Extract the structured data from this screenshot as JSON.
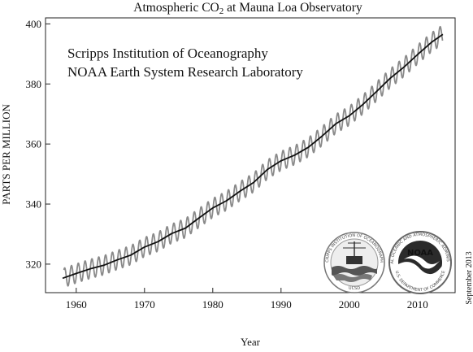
{
  "chart_data": {
    "type": "line",
    "title_main": "Atmospheric CO",
    "title_sub": "2",
    "title_rest": " at Mauna Loa Observatory",
    "xlabel": "Year",
    "ylabel": "PARTS PER MILLION",
    "xlim": [
      1955.5,
      2015.5
    ],
    "ylim": [
      310.5,
      402
    ],
    "x_ticks": [
      1960,
      1970,
      1980,
      1990,
      2000,
      2010
    ],
    "y_ticks": [
      320,
      340,
      360,
      380,
      400
    ],
    "annotations": [
      "Scripps Institution of Oceanography",
      "NOAA Earth System Research Laboratory"
    ],
    "date_note": "September 2013",
    "grid": false,
    "series": [
      {
        "role": "trend",
        "style": "black",
        "x": [
          1958,
          1960,
          1962,
          1964,
          1966,
          1968,
          1970,
          1972,
          1974,
          1976,
          1978,
          1980,
          1982,
          1984,
          1986,
          1988,
          1990,
          1992,
          1994,
          1996,
          1998,
          2000,
          2002,
          2004,
          2006,
          2008,
          2010,
          2012,
          2013.7
        ],
        "y": [
          315.3,
          316.9,
          318.4,
          319.6,
          321.4,
          323.0,
          325.7,
          327.5,
          330.2,
          332.0,
          335.4,
          338.7,
          341.1,
          344.3,
          347.2,
          351.5,
          354.4,
          356.3,
          358.9,
          362.6,
          366.7,
          369.4,
          373.2,
          377.5,
          381.9,
          385.6,
          389.8,
          393.8,
          396.5
        ]
      },
      {
        "role": "monthly",
        "style": "gray",
        "seasonal_amplitude_ppm": 3.2,
        "x_start": 1958.2,
        "x_end": 2013.7
      }
    ]
  },
  "logos": [
    {
      "name": "scripps-seal",
      "ring_text": "SCRIPPS INSTITUTION OF OCEANOGRAPHY",
      "bottom_text": "UCSD"
    },
    {
      "name": "noaa-seal",
      "ring_text": "NATIONAL OCEANIC AND ATMOSPHERIC ADMINISTRATION",
      "bottom_text": "U.S. DEPARTMENT OF COMMERCE",
      "center_text": "NOAA"
    }
  ]
}
